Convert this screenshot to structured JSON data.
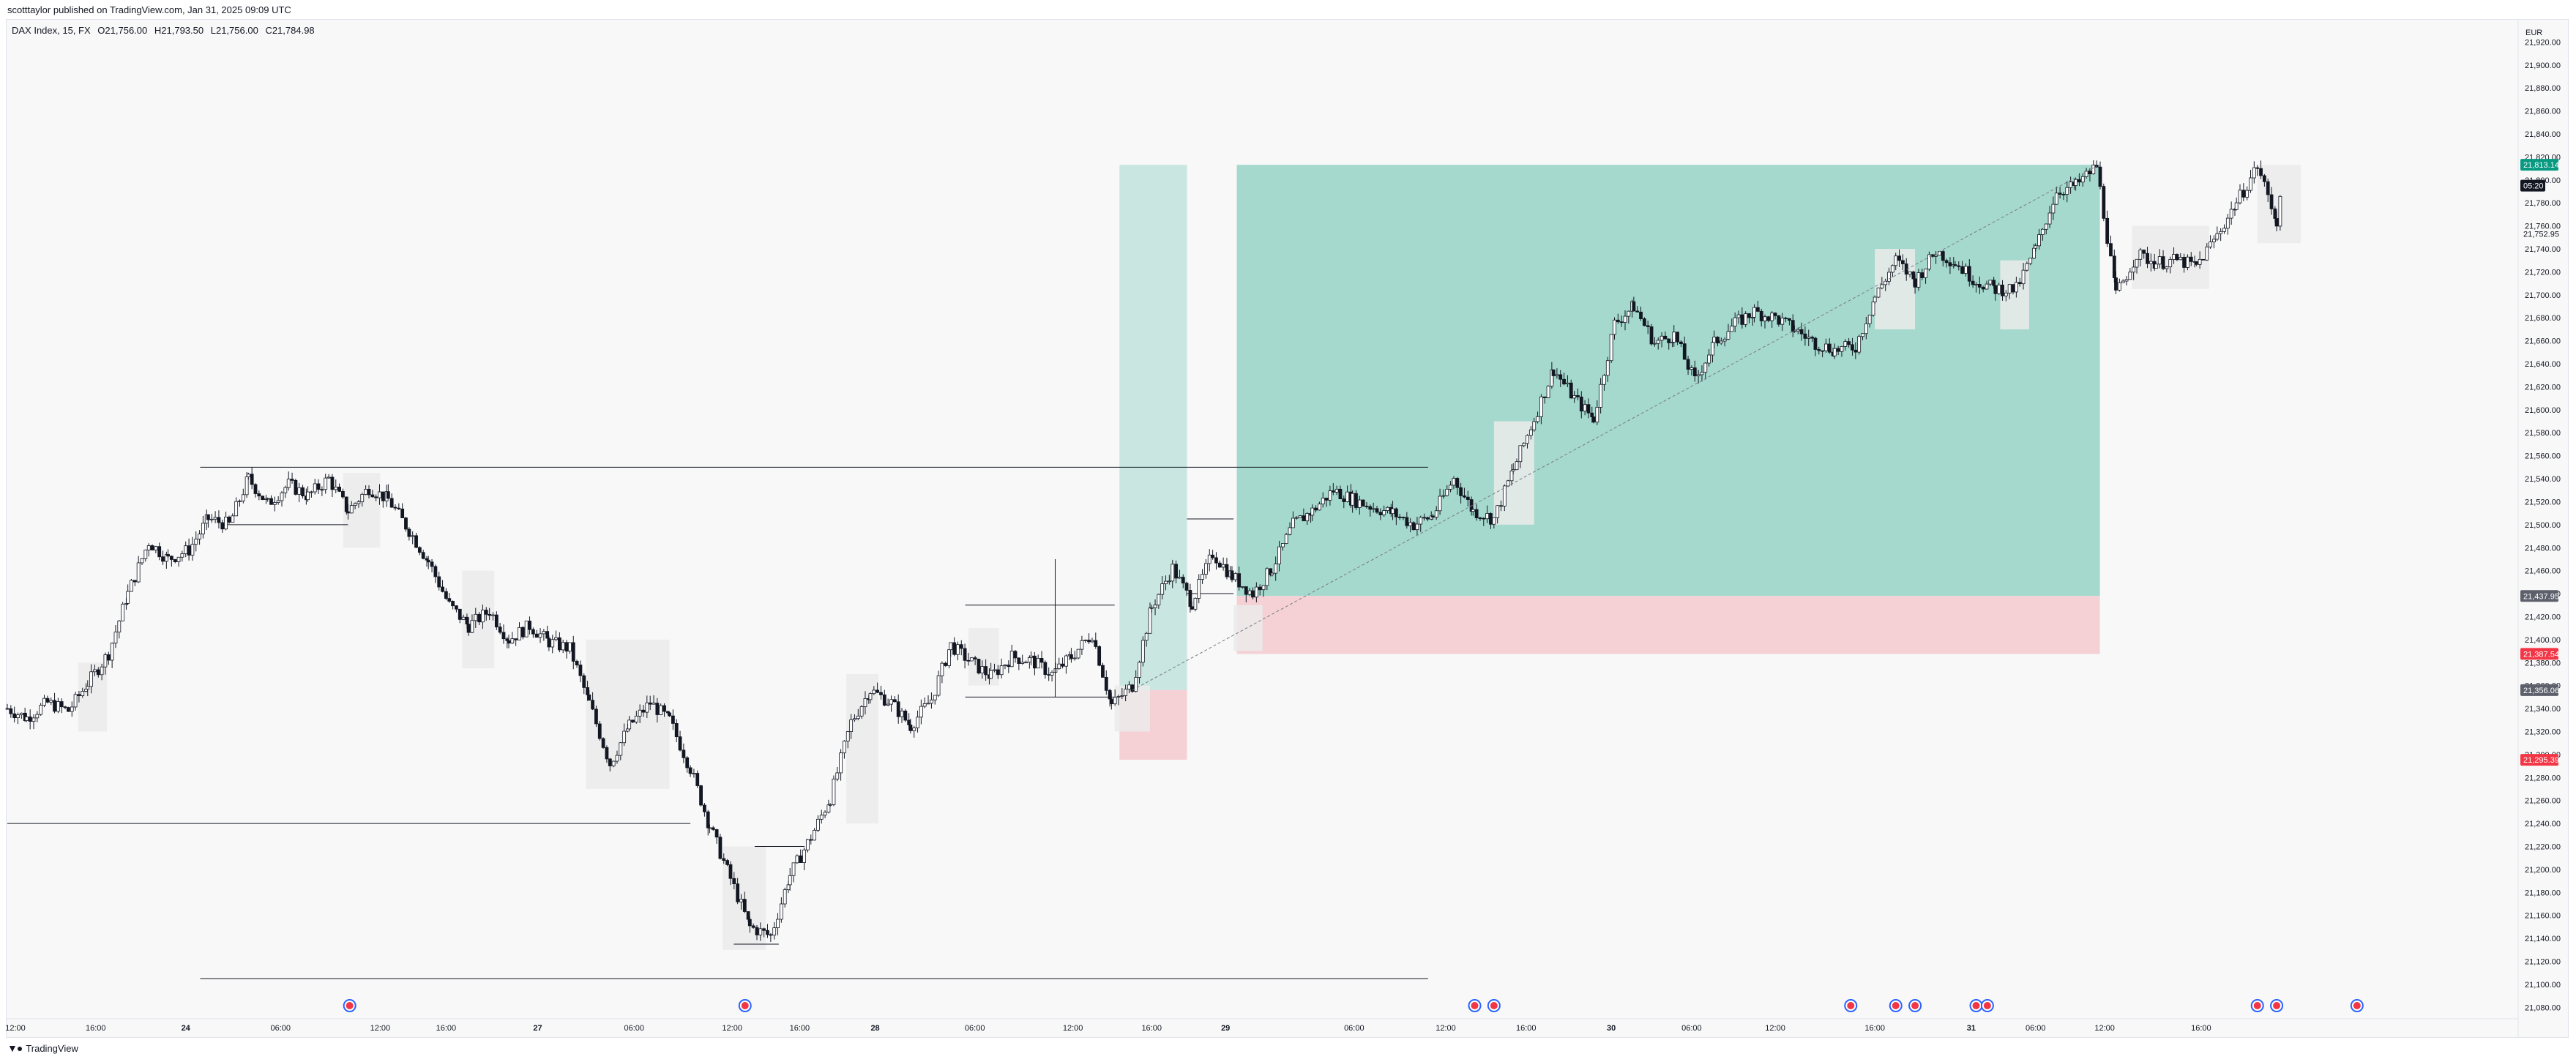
{
  "header": {
    "publisher": "scotttaylor published on TradingView.com, Jan 31, 2025 09:09 UTC"
  },
  "legend": {
    "symbol": "DAX Index, 15, FX",
    "open": "O21,756.00",
    "high": "H21,793.50",
    "low": "L21,756.00",
    "close": "C21,784.98"
  },
  "footer": {
    "brand": "TradingView",
    "logo": "tradingview-logo-icon"
  },
  "colors": {
    "profit_zone": "#a5d9cd",
    "profit_zone_light": "#c9e6e0",
    "loss_zone": "#f5d0d5",
    "highlight_box": "#ebebeb",
    "candle_up": "#ffffff",
    "candle_down": "#131722",
    "current_price": "#089981",
    "stop_price": "#f23645",
    "neutral_tag": "#5d606b",
    "event_marker": "#2962ff"
  },
  "chart_data": {
    "type": "candlestick",
    "currency": "EUR",
    "timeframe_minutes": 15,
    "ylim": [
      21070,
      21940
    ],
    "y_ticks": [
      21080,
      21100,
      21120,
      21140,
      21160,
      21180,
      21200,
      21220,
      21240,
      21260,
      21280,
      21300,
      21320,
      21340,
      21360,
      21380,
      21400,
      21420,
      21440,
      21460,
      21480,
      21500,
      21520,
      21540,
      21560,
      21580,
      21600,
      21620,
      21640,
      21660,
      21680,
      21700,
      21720,
      21740,
      21760,
      21780,
      21800,
      21820,
      21840,
      21860,
      21880,
      21900,
      21920
    ],
    "y_tick_labels": [
      "21,080.00",
      "21,100.00",
      "21,120.00",
      "21,140.00",
      "21,160.00",
      "21,180.00",
      "21,200.00",
      "21,220.00",
      "21,240.00",
      "21,260.00",
      "21,280.00",
      "21,300.00",
      "21,320.00",
      "21,340.00",
      "21,360.00",
      "21,380.00",
      "21,400.00",
      "21,420.00",
      "21,440.00",
      "21,460.00",
      "21,480.00",
      "21,500.00",
      "21,520.00",
      "21,540.00",
      "21,560.00",
      "21,580.00",
      "21,600.00",
      "21,620.00",
      "21,640.00",
      "21,660.00",
      "21,680.00",
      "21,700.00",
      "21,720.00",
      "21,740.00",
      "21,760.00",
      "21,780.00",
      "21,800.00",
      "21,820.00",
      "21,840.00",
      "21,860.00",
      "21,880.00",
      "21,900.00",
      "21,920.00"
    ],
    "x_ticks": [
      "12:00",
      "16:00",
      "24",
      "06:00",
      "12:00",
      "16:00",
      "27",
      "06:00",
      "12:00",
      "16:00",
      "28",
      "06:00",
      "12:00",
      "16:00",
      "29",
      "06:00",
      "12:00",
      "16:00",
      "30",
      "06:00",
      "12:00",
      "16:00",
      "31",
      "06:00",
      "12:00",
      "16:00"
    ],
    "price_tags": [
      {
        "label": "21,813.14",
        "value": 21813.14,
        "kind": "current"
      },
      {
        "label": "05:20",
        "value": 21795,
        "kind": "countdown"
      },
      {
        "label": "21,752.95",
        "value": 21752.95,
        "kind": "plain"
      },
      {
        "label": "21,437.95",
        "value": 21437.95,
        "kind": "neutral"
      },
      {
        "label": "21,387.54",
        "value": 21387.54,
        "kind": "stop"
      },
      {
        "label": "21,356.06",
        "value": 21356.06,
        "kind": "neutral"
      },
      {
        "label": "21,295.39",
        "value": 21295.39,
        "kind": "stop"
      }
    ],
    "price_path": [
      [
        0,
        21340
      ],
      [
        12,
        21332
      ],
      [
        25,
        21345
      ],
      [
        38,
        21338
      ],
      [
        50,
        21362
      ],
      [
        63,
        21388
      ],
      [
        75,
        21440
      ],
      [
        88,
        21485
      ],
      [
        100,
        21470
      ],
      [
        113,
        21478
      ],
      [
        125,
        21505
      ],
      [
        138,
        21500
      ],
      [
        150,
        21540
      ],
      [
        162,
        21518
      ],
      [
        175,
        21535
      ],
      [
        187,
        21525
      ],
      [
        200,
        21540
      ],
      [
        212,
        21512
      ],
      [
        225,
        21532
      ],
      [
        237,
        21522
      ],
      [
        250,
        21495
      ],
      [
        262,
        21468
      ],
      [
        275,
        21430
      ],
      [
        287,
        21412
      ],
      [
        300,
        21425
      ],
      [
        312,
        21400
      ],
      [
        325,
        21412
      ],
      [
        337,
        21398
      ],
      [
        350,
        21392
      ],
      [
        362,
        21345
      ],
      [
        375,
        21292
      ],
      [
        387,
        21325
      ],
      [
        400,
        21345
      ],
      [
        412,
        21330
      ],
      [
        425,
        21288
      ],
      [
        437,
        21238
      ],
      [
        450,
        21192
      ],
      [
        462,
        21150
      ],
      [
        475,
        21142
      ],
      [
        487,
        21195
      ],
      [
        500,
        21228
      ],
      [
        512,
        21262
      ],
      [
        525,
        21328
      ],
      [
        537,
        21356
      ],
      [
        550,
        21345
      ],
      [
        562,
        21325
      ],
      [
        575,
        21348
      ],
      [
        587,
        21395
      ],
      [
        600,
        21380
      ],
      [
        612,
        21368
      ],
      [
        625,
        21385
      ],
      [
        637,
        21382
      ],
      [
        650,
        21370
      ],
      [
        662,
        21385
      ],
      [
        675,
        21405
      ],
      [
        687,
        21343
      ],
      [
        700,
        21360
      ],
      [
        712,
        21428
      ],
      [
        725,
        21462
      ],
      [
        737,
        21432
      ],
      [
        750,
        21475
      ],
      [
        762,
        21455
      ],
      [
        775,
        21440
      ],
      [
        787,
        21462
      ],
      [
        800,
        21500
      ],
      [
        812,
        21512
      ],
      [
        825,
        21530
      ],
      [
        837,
        21522
      ],
      [
        850,
        21515
      ],
      [
        862,
        21510
      ],
      [
        875,
        21500
      ],
      [
        887,
        21508
      ],
      [
        900,
        21540
      ],
      [
        912,
        21512
      ],
      [
        925,
        21505
      ],
      [
        937,
        21548
      ],
      [
        950,
        21592
      ],
      [
        962,
        21635
      ],
      [
        975,
        21610
      ],
      [
        987,
        21592
      ],
      [
        1000,
        21675
      ],
      [
        1012,
        21690
      ],
      [
        1025,
        21658
      ],
      [
        1037,
        21665
      ],
      [
        1050,
        21625
      ],
      [
        1062,
        21658
      ],
      [
        1075,
        21675
      ],
      [
        1087,
        21685
      ],
      [
        1100,
        21680
      ],
      [
        1112,
        21670
      ],
      [
        1125,
        21658
      ],
      [
        1137,
        21652
      ],
      [
        1150,
        21655
      ],
      [
        1162,
        21698
      ],
      [
        1175,
        21730
      ],
      [
        1187,
        21712
      ],
      [
        1200,
        21738
      ],
      [
        1212,
        21728
      ],
      [
        1225,
        21712
      ],
      [
        1237,
        21705
      ],
      [
        1250,
        21705
      ],
      [
        1262,
        21740
      ],
      [
        1275,
        21790
      ],
      [
        1287,
        21795
      ],
      [
        1300,
        21812
      ],
      [
        1312,
        21700
      ],
      [
        1325,
        21735
      ],
      [
        1337,
        21728
      ],
      [
        1350,
        21730
      ],
      [
        1362,
        21725
      ],
      [
        1375,
        21752
      ],
      [
        1387,
        21780
      ],
      [
        1400,
        21812
      ],
      [
        1412,
        21765
      ],
      [
        1415,
        21785
      ]
    ],
    "highlight_boxes": [
      {
        "x1": 44,
        "x2": 62,
        "y1": 21380,
        "y2": 21320
      },
      {
        "x1": 209,
        "x2": 232,
        "y1": 21545,
        "y2": 21480
      },
      {
        "x1": 283,
        "x2": 303,
        "y1": 21460,
        "y2": 21375
      },
      {
        "x1": 360,
        "x2": 412,
        "y1": 21400,
        "y2": 21270
      },
      {
        "x1": 445,
        "x2": 472,
        "y1": 21220,
        "y2": 21130
      },
      {
        "x1": 522,
        "x2": 542,
        "y1": 21370,
        "y2": 21240
      },
      {
        "x1": 598,
        "x2": 617,
        "y1": 21410,
        "y2": 21360
      },
      {
        "x1": 689,
        "x2": 711,
        "y1": 21360,
        "y2": 21320
      },
      {
        "x1": 763,
        "x2": 781,
        "y1": 21430,
        "y2": 21390
      },
      {
        "x1": 925,
        "x2": 950,
        "y1": 21590,
        "y2": 21500
      },
      {
        "x1": 1162,
        "x2": 1187,
        "y1": 21740,
        "y2": 21670
      },
      {
        "x1": 1240,
        "x2": 1258,
        "y1": 21730,
        "y2": 21670
      },
      {
        "x1": 1322,
        "x2": 1370,
        "y1": 21760,
        "y2": 21705
      },
      {
        "x1": 1400,
        "x2": 1427,
        "y1": 21813,
        "y2": 21745
      }
    ],
    "positions": [
      {
        "label": "long-position-1",
        "x1": 692,
        "x2": 734,
        "entry": 21356.06,
        "target": 21813.14,
        "stop": 21295.39
      },
      {
        "label": "long-position-2",
        "x1": 765,
        "x2": 1302,
        "entry": 21437.95,
        "target": 21813.14,
        "stop": 21387.54
      }
    ],
    "horizontal_lines": [
      {
        "value": 21550,
        "x1": 120,
        "x2": 884
      },
      {
        "value": 21500,
        "x1": 134,
        "x2": 212
      },
      {
        "value": 21240,
        "x1": 0,
        "x2": 425
      },
      {
        "value": 21220,
        "x1": 465,
        "x2": 496
      },
      {
        "value": 21135,
        "x1": 452,
        "x2": 480
      },
      {
        "value": 21105,
        "x1": 120,
        "x2": 884
      },
      {
        "value": 21430,
        "x1": 596,
        "x2": 689
      },
      {
        "value": 21350,
        "x1": 596,
        "x2": 689
      },
      {
        "value": 21505,
        "x1": 734,
        "x2": 763
      },
      {
        "value": 21440,
        "x1": 734,
        "x2": 763
      }
    ],
    "event_markers": [
      213,
      459,
      913,
      925,
      1147,
      1175,
      1187,
      1225,
      1232,
      1400,
      1412,
      1462
    ]
  },
  "price_axis": {
    "currency": "EUR"
  }
}
